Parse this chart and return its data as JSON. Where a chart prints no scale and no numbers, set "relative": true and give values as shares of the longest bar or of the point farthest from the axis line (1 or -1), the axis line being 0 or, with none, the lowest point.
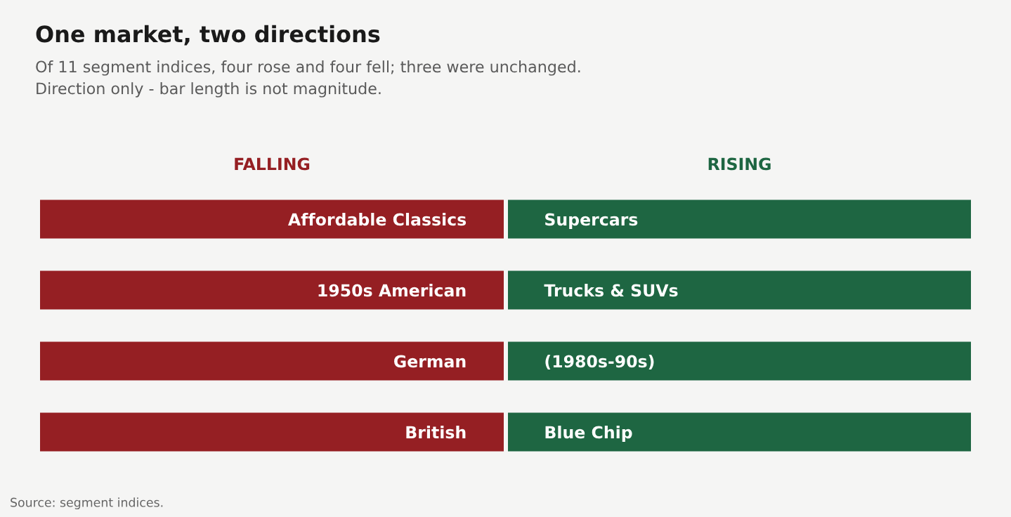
{
  "chart_data": [
    {
      "type": "bar",
      "orientation": "horizontal",
      "relative": true,
      "title": "One market, two directions",
      "subtitle": "Of 11 segment indices, four rose and four fell; three were unchanged.\nDirection only - bar length is not magnitude.",
      "categories": [
        "Affordable Classics",
        "1950s American",
        "German",
        "British"
      ],
      "series": [
        {
          "name": "FALLING",
          "color": "#951f23",
          "values": [
            -1,
            -1,
            -1,
            -1
          ]
        }
      ]
    },
    {
      "type": "bar",
      "orientation": "horizontal",
      "relative": true,
      "categories": [
        "Supercars",
        "Trucks & SUVs",
        "(1980s-90s)",
        "Blue Chip"
      ],
      "series": [
        {
          "name": "RISING",
          "color": "#1e6642",
          "values": [
            1,
            1,
            1,
            1
          ]
        }
      ],
      "annotations": [
        "Source: segment indices."
      ]
    }
  ]
}
